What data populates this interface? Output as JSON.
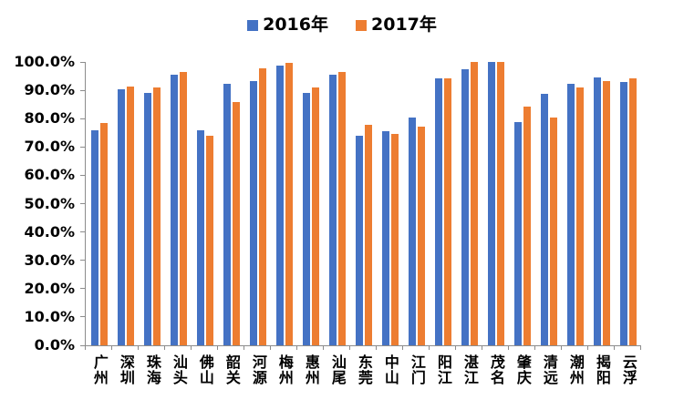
{
  "legend": {
    "items": [
      {
        "label": "2016年",
        "color": "#4472C4"
      },
      {
        "label": "2017年",
        "color": "#ED7D31"
      }
    ]
  },
  "chart_data": {
    "type": "bar",
    "title": "",
    "xlabel": "",
    "ylabel": "",
    "ylim": [
      0,
      100
    ],
    "ytick_labels": [
      "0.0%",
      "10.0%",
      "20.0%",
      "30.0%",
      "40.0%",
      "50.0%",
      "60.0%",
      "70.0%",
      "80.0%",
      "90.0%",
      "100.0%"
    ],
    "grid": false,
    "legend_position": "top-center",
    "axis_color": "#8c8c8c",
    "text_color": "#000000",
    "categories": [
      "广州",
      "深圳",
      "珠海",
      "汕头",
      "佛山",
      "韶关",
      "河源",
      "梅州",
      "惠州",
      "汕尾",
      "东莞",
      "中山",
      "江门",
      "阳江",
      "湛江",
      "茂名",
      "肇庆",
      "清远",
      "潮州",
      "揭阳",
      "云浮"
    ],
    "series": [
      {
        "name": "2016年",
        "color": "#4472C4",
        "values": [
          76.0,
          90.2,
          89.2,
          95.6,
          76.0,
          92.2,
          93.1,
          98.7,
          89.2,
          95.5,
          73.8,
          75.6,
          80.3,
          94.1,
          97.5,
          100.0,
          78.8,
          88.8,
          92.2,
          94.4,
          93.0
        ]
      },
      {
        "name": "2017年",
        "color": "#ED7D31",
        "values": [
          78.3,
          91.4,
          90.9,
          96.4,
          74.1,
          85.7,
          97.7,
          99.8,
          91.1,
          96.4,
          77.9,
          74.7,
          77.1,
          94.1,
          100.0,
          100.0,
          84.4,
          80.3,
          91.1,
          93.1,
          94.3
        ]
      }
    ]
  }
}
